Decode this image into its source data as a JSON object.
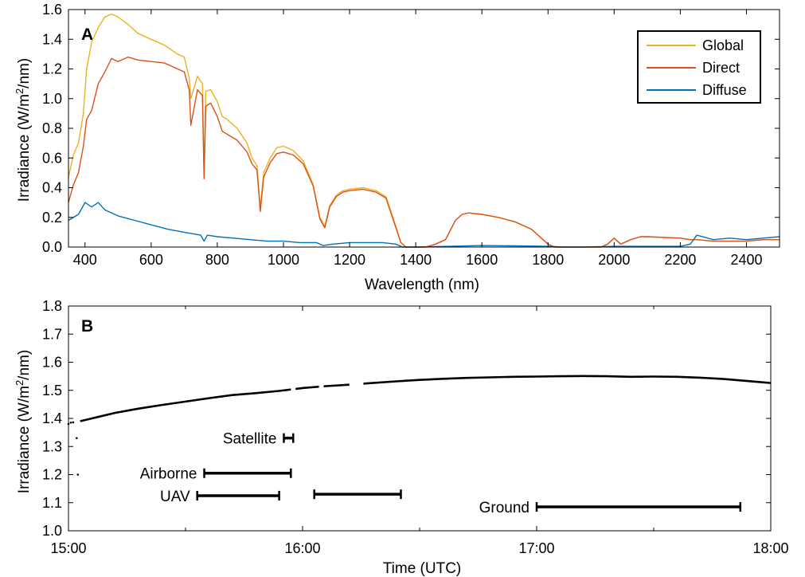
{
  "chart_data": [
    {
      "panel": "A",
      "type": "line",
      "xlabel": "Wavelength (nm)",
      "ylabel": "Irradiance (W/m²/nm)",
      "xlim": [
        350,
        2500
      ],
      "ylim": [
        0,
        1.6
      ],
      "xticks": [
        400,
        600,
        800,
        1000,
        1200,
        1400,
        1600,
        1800,
        2000,
        2200,
        2400
      ],
      "yticks": [
        "0.0",
        "0.2",
        "0.4",
        "0.6",
        "0.8",
        "1.0",
        "1.2",
        "1.4",
        "1.6"
      ],
      "legend_position": "top-right",
      "colors": {
        "Global": "#EDB120",
        "Direct": "#D95319",
        "Diffuse": "#0072BD"
      },
      "series": [
        {
          "name": "Global",
          "x": [
            350,
            365,
            380,
            395,
            405,
            420,
            440,
            460,
            480,
            500,
            530,
            560,
            600,
            640,
            680,
            700,
            715,
            720,
            740,
            755,
            760,
            765,
            780,
            800,
            815,
            830,
            860,
            890,
            905,
            920,
            930,
            940,
            960,
            980,
            1000,
            1030,
            1060,
            1090,
            1110,
            1125,
            1140,
            1160,
            1180,
            1200,
            1240,
            1280,
            1310,
            1340,
            1355,
            1370,
            1400,
            1430,
            1460,
            1490,
            1520,
            1540,
            1560,
            1600,
            1650,
            1700,
            1750,
            1780,
            1800,
            1820,
            1900,
            1960,
            1980,
            2000,
            2020,
            2050,
            2080,
            2100,
            2200,
            2230,
            2250,
            2300,
            2350,
            2400,
            2450,
            2500
          ],
          "y": [
            0.47,
            0.62,
            0.7,
            0.9,
            1.2,
            1.38,
            1.48,
            1.55,
            1.57,
            1.55,
            1.5,
            1.44,
            1.4,
            1.36,
            1.3,
            1.28,
            1.14,
            1.0,
            1.15,
            1.1,
            0.5,
            1.05,
            1.06,
            0.98,
            0.88,
            0.86,
            0.8,
            0.7,
            0.6,
            0.55,
            0.26,
            0.5,
            0.6,
            0.67,
            0.68,
            0.65,
            0.58,
            0.42,
            0.2,
            0.14,
            0.28,
            0.35,
            0.38,
            0.39,
            0.4,
            0.38,
            0.34,
            0.14,
            0.03,
            0.0,
            0.0,
            0.0,
            0.02,
            0.05,
            0.18,
            0.22,
            0.23,
            0.22,
            0.2,
            0.17,
            0.12,
            0.06,
            0.02,
            0.0,
            0.0,
            0.0,
            0.02,
            0.06,
            0.02,
            0.05,
            0.07,
            0.07,
            0.06,
            0.05,
            0.05,
            0.04,
            0.04,
            0.04,
            0.05,
            0.05
          ]
        },
        {
          "name": "Direct",
          "x": [
            350,
            365,
            380,
            395,
            405,
            420,
            440,
            460,
            480,
            500,
            530,
            560,
            600,
            640,
            680,
            700,
            715,
            720,
            740,
            755,
            760,
            765,
            780,
            800,
            815,
            830,
            860,
            890,
            905,
            920,
            930,
            940,
            960,
            980,
            1000,
            1030,
            1060,
            1090,
            1110,
            1125,
            1140,
            1160,
            1180,
            1200,
            1240,
            1280,
            1310,
            1340,
            1355,
            1370,
            1400,
            1430,
            1460,
            1490,
            1520,
            1540,
            1560,
            1600,
            1650,
            1700,
            1750,
            1780,
            1800,
            1820,
            1900,
            1960,
            1980,
            2000,
            2020,
            2050,
            2080,
            2100,
            2200,
            2230,
            2250,
            2300,
            2350,
            2400,
            2450,
            2500
          ],
          "y": [
            0.3,
            0.42,
            0.5,
            0.68,
            0.86,
            0.92,
            1.1,
            1.18,
            1.27,
            1.25,
            1.28,
            1.26,
            1.25,
            1.24,
            1.2,
            1.18,
            1.06,
            0.82,
            1.06,
            1.02,
            0.46,
            0.95,
            0.97,
            0.88,
            0.78,
            0.76,
            0.72,
            0.64,
            0.56,
            0.52,
            0.24,
            0.47,
            0.57,
            0.63,
            0.64,
            0.62,
            0.56,
            0.41,
            0.19,
            0.13,
            0.27,
            0.34,
            0.37,
            0.38,
            0.39,
            0.37,
            0.33,
            0.13,
            0.03,
            0.0,
            0.0,
            0.0,
            0.02,
            0.05,
            0.18,
            0.22,
            0.23,
            0.22,
            0.2,
            0.17,
            0.12,
            0.06,
            0.02,
            0.0,
            0.0,
            0.0,
            0.02,
            0.06,
            0.02,
            0.05,
            0.07,
            0.07,
            0.06,
            0.05,
            0.05,
            0.04,
            0.04,
            0.04,
            0.05,
            0.05
          ]
        },
        {
          "name": "Diffuse",
          "x": [
            350,
            380,
            400,
            420,
            440,
            460,
            500,
            550,
            600,
            650,
            700,
            750,
            760,
            770,
            800,
            850,
            900,
            950,
            1000,
            1050,
            1100,
            1120,
            1150,
            1200,
            1250,
            1300,
            1340,
            1360,
            1400,
            1500,
            1600,
            1700,
            1800,
            1850,
            1900,
            2000,
            2100,
            2200,
            2230,
            2250,
            2300,
            2350,
            2400,
            2450,
            2500
          ],
          "y": [
            0.18,
            0.22,
            0.3,
            0.27,
            0.3,
            0.25,
            0.21,
            0.18,
            0.15,
            0.12,
            0.1,
            0.08,
            0.04,
            0.08,
            0.07,
            0.06,
            0.05,
            0.04,
            0.04,
            0.03,
            0.03,
            0.01,
            0.02,
            0.03,
            0.03,
            0.03,
            0.02,
            0.0,
            0.0,
            0.005,
            0.01,
            0.008,
            0.005,
            0.0,
            0.0,
            0.005,
            0.005,
            0.005,
            0.02,
            0.08,
            0.05,
            0.06,
            0.05,
            0.06,
            0.07
          ]
        }
      ]
    },
    {
      "panel": "B",
      "type": "line",
      "xlabel": "Time (UTC)",
      "ylabel": "Irradiance (W/m²/nm)",
      "xlim": [
        15.0,
        18.0
      ],
      "ylim": [
        1.0,
        1.8
      ],
      "xticks": [
        "15:00",
        "16:00",
        "17:00",
        "18:00"
      ],
      "yticks": [
        "1.0",
        "1.1",
        "1.2",
        "1.3",
        "1.4",
        "1.5",
        "1.6",
        "1.7",
        "1.8"
      ],
      "series": [
        {
          "x": [
            15.05,
            15.1,
            15.2,
            15.3,
            15.4,
            15.5,
            15.6,
            15.7,
            15.8,
            15.9,
            16.0,
            16.1,
            16.2,
            16.28,
            16.4,
            16.5,
            16.6,
            16.7,
            16.8,
            16.9,
            17.0,
            17.1,
            17.2,
            17.3,
            17.4,
            17.5,
            17.6,
            17.7,
            17.8,
            17.9,
            18.0
          ],
          "y": [
            1.39,
            1.4,
            1.42,
            1.435,
            1.448,
            1.46,
            1.472,
            1.483,
            1.49,
            1.498,
            1.508,
            1.515,
            1.52,
            1.525,
            1.532,
            1.537,
            1.541,
            1.544,
            1.546,
            1.548,
            1.549,
            1.55,
            1.551,
            1.55,
            1.548,
            1.549,
            1.548,
            1.545,
            1.54,
            1.533,
            1.526
          ]
        }
      ],
      "scatter_points": [
        {
          "x": 15.0,
          "y": 1.38
        },
        {
          "x": 15.01,
          "y": 1.385
        },
        {
          "x": 15.02,
          "y": 1.386
        },
        {
          "x": 15.035,
          "y": 1.33
        },
        {
          "x": 15.04,
          "y": 1.2
        }
      ],
      "measurement_ranges": [
        {
          "label": "Satellite",
          "start": 15.92,
          "end": 15.96,
          "y": 1.33
        },
        {
          "label": "Airborne",
          "start": 15.58,
          "end": 15.95,
          "y": 1.205
        },
        {
          "label": "UAV",
          "start": 15.55,
          "end": 15.9,
          "y": 1.125
        },
        {
          "label": "",
          "start": 16.05,
          "end": 16.42,
          "y": 1.13
        },
        {
          "label": "Ground",
          "start": 17.0,
          "end": 17.87,
          "y": 1.085
        }
      ]
    }
  ]
}
